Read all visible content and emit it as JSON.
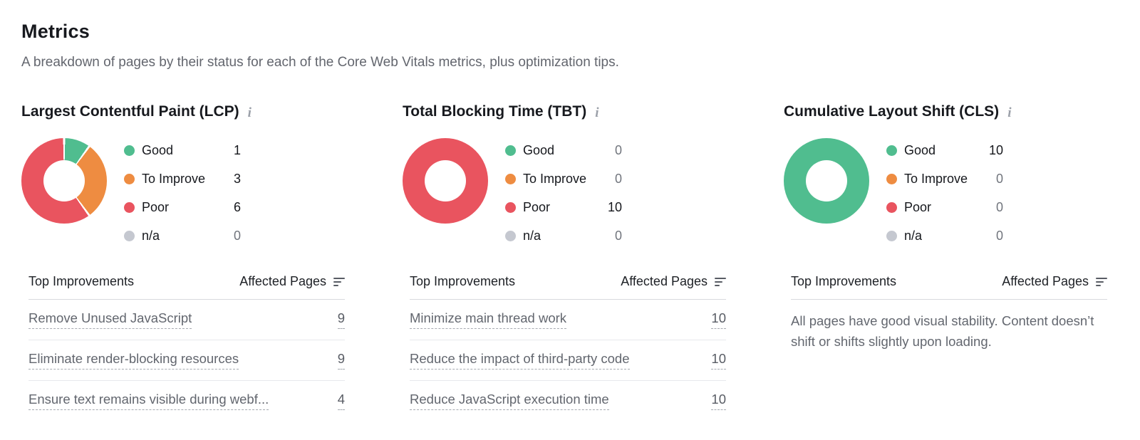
{
  "header": {
    "title": "Metrics",
    "subtitle": "A breakdown of pages by their status for each of the Core Web Vitals metrics, plus optimization tips."
  },
  "colors": {
    "good": "#50bd8f",
    "to_improve": "#ee8c41",
    "poor": "#e9545f",
    "na": "#c5c8d0"
  },
  "icons": {
    "info": "i"
  },
  "table_headers": {
    "improvements": "Top Improvements",
    "affected_pages": "Affected Pages"
  },
  "panels": [
    {
      "id": "lcp",
      "title": "Largest Contentful Paint (LCP)",
      "legend": [
        {
          "label": "Good",
          "value": 1,
          "color_key": "good"
        },
        {
          "label": "To Improve",
          "value": 3,
          "color_key": "to_improve"
        },
        {
          "label": "Poor",
          "value": 6,
          "color_key": "poor"
        },
        {
          "label": "n/a",
          "value": 0,
          "color_key": "na"
        }
      ],
      "improvements": [
        {
          "label": "Remove Unused JavaScript",
          "pages": 9
        },
        {
          "label": "Eliminate render-blocking resources",
          "pages": 9
        },
        {
          "label": "Ensure text remains visible during webf...",
          "pages": 4
        }
      ]
    },
    {
      "id": "tbt",
      "title": "Total Blocking Time (TBT)",
      "legend": [
        {
          "label": "Good",
          "value": 0,
          "color_key": "good"
        },
        {
          "label": "To Improve",
          "value": 0,
          "color_key": "to_improve"
        },
        {
          "label": "Poor",
          "value": 10,
          "color_key": "poor"
        },
        {
          "label": "n/a",
          "value": 0,
          "color_key": "na"
        }
      ],
      "improvements": [
        {
          "label": "Minimize main thread work",
          "pages": 10
        },
        {
          "label": "Reduce the impact of third-party code",
          "pages": 10
        },
        {
          "label": "Reduce JavaScript execution time",
          "pages": 10
        }
      ]
    },
    {
      "id": "cls",
      "title": "Cumulative Layout Shift (CLS)",
      "legend": [
        {
          "label": "Good",
          "value": 10,
          "color_key": "good"
        },
        {
          "label": "To Improve",
          "value": 0,
          "color_key": "to_improve"
        },
        {
          "label": "Poor",
          "value": 0,
          "color_key": "poor"
        },
        {
          "label": "n/a",
          "value": 0,
          "color_key": "na"
        }
      ],
      "message": "All pages have good visual stability. Content doesn’t shift or shifts slightly upon loading."
    }
  ]
}
